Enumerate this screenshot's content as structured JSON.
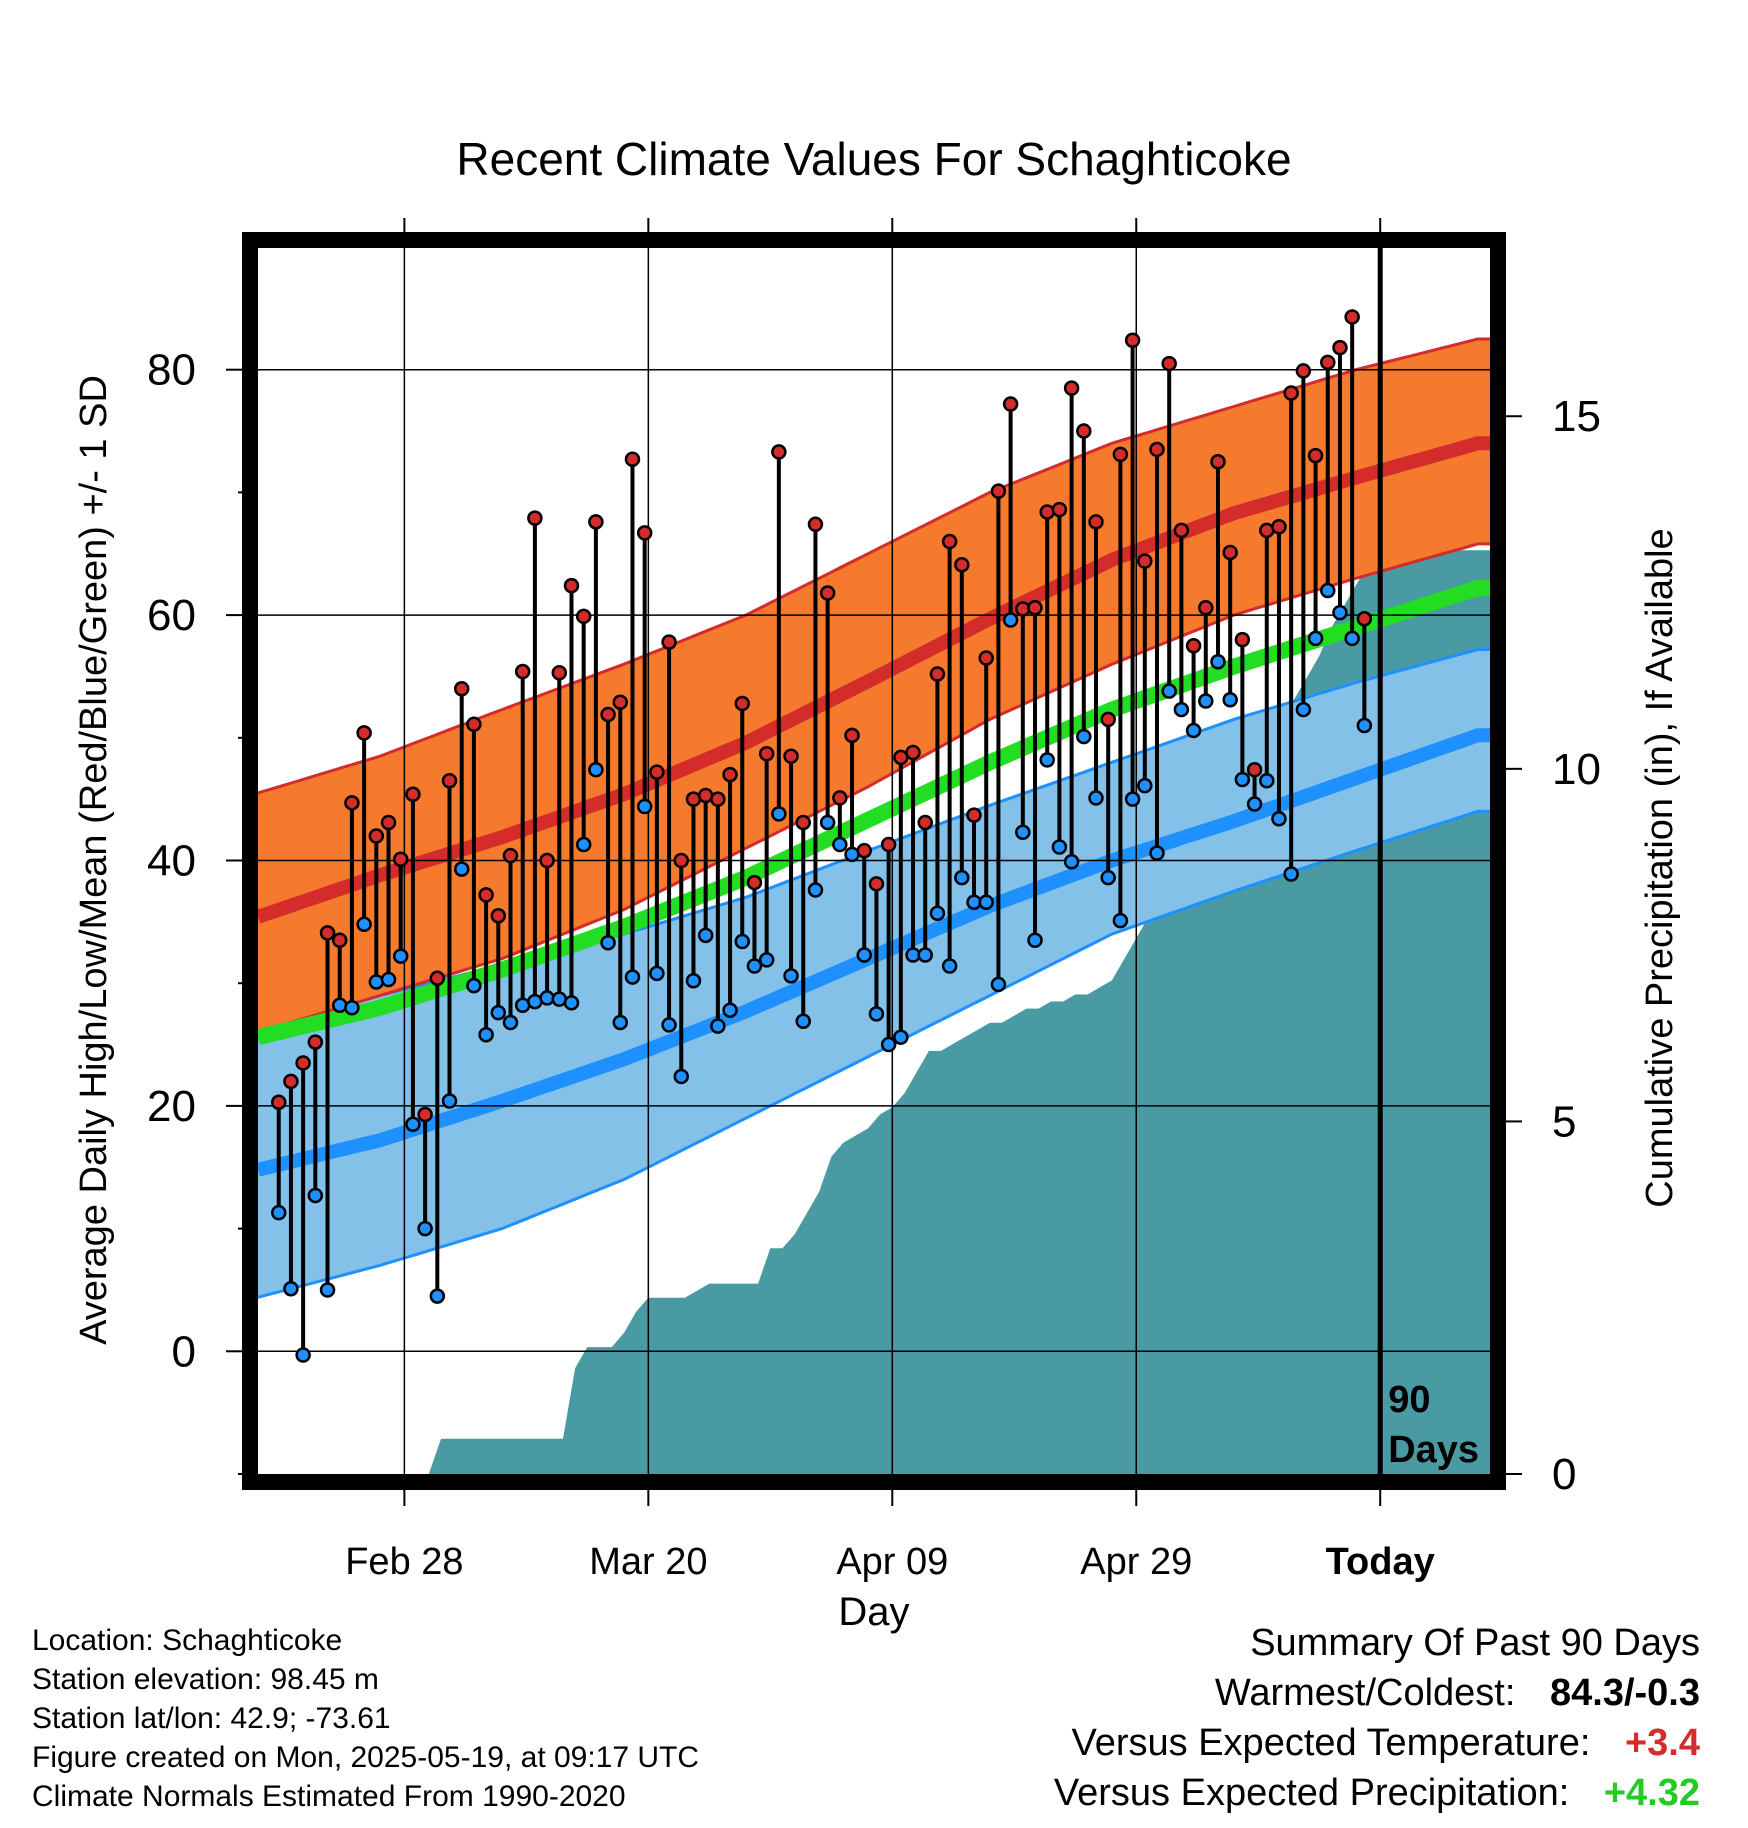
{
  "chart_data": {
    "type": "line",
    "title": "Recent Climate Values For Schaghticoke",
    "xlabel": "Day",
    "ylabel_left": "Average Daily High/Low/Mean (Red/Blue/Green) +/- 1 SD",
    "ylabel_right": "Cumulative Precipitation (in), If Available",
    "x_ticks": [
      {
        "day": 12,
        "label": "Feb 28"
      },
      {
        "day": 32,
        "label": "Mar 20"
      },
      {
        "day": 52,
        "label": "Apr 09"
      },
      {
        "day": 72,
        "label": "Apr 29"
      },
      {
        "day": 92,
        "label": "Today"
      }
    ],
    "xlim": [
      0,
      101
    ],
    "ylim_left": [
      -10,
      90
    ],
    "yticks_left": [
      0,
      20,
      40,
      60,
      80
    ],
    "ylim_right": [
      0,
      17.4
    ],
    "yticks_right": [
      0,
      5,
      10,
      15
    ],
    "today_day": 92,
    "today_annotation": [
      "90",
      "Days"
    ],
    "normals": {
      "x": [
        0,
        10,
        20,
        30,
        40,
        50,
        60,
        70,
        80,
        90,
        100
      ],
      "high_mean": [
        35.4,
        38.8,
        41.9,
        45.4,
        49.6,
        54.6,
        59.7,
        64.5,
        68.3,
        71.2,
        74.0
      ],
      "high_upper": [
        45.5,
        48.5,
        52.3,
        56.0,
        60.0,
        65.0,
        70.0,
        74.0,
        77.0,
        80.0,
        82.5
      ],
      "high_lower": [
        26.0,
        29.0,
        32.0,
        36.0,
        41.0,
        46.0,
        51.5,
        56.0,
        60.0,
        63.0,
        65.8
      ],
      "low_mean": [
        14.8,
        17.2,
        20.4,
        23.8,
        27.7,
        32.0,
        36.3,
        40.0,
        43.2,
        46.7,
        50.2
      ],
      "low_upper": [
        26.5,
        29.0,
        31.5,
        34.0,
        37.0,
        40.8,
        44.5,
        48.0,
        51.5,
        54.5,
        57.2
      ],
      "low_lower": [
        4.4,
        7.0,
        10.0,
        14.0,
        19.0,
        24.0,
        29.0,
        34.0,
        37.5,
        40.8,
        44.0
      ],
      "mean": [
        25.6,
        28.0,
        31.1,
        34.6,
        38.6,
        43.3,
        48.0,
        52.3,
        55.8,
        59.0,
        62.2
      ],
      "colors": {
        "high_band": "#F57A2E",
        "high_line": "#D42B2B",
        "low_band": "#83C1E8",
        "low_line": "#1E90FF",
        "mean_line": "#22DD22"
      }
    },
    "daily_high": [
      20.3,
      22.0,
      23.5,
      25.2,
      34.1,
      33.5,
      44.7,
      50.4,
      42.0,
      43.1,
      40.1,
      45.4,
      19.3,
      30.4,
      46.5,
      54.0,
      51.1,
      37.2,
      35.5,
      40.4,
      55.4,
      67.9,
      40.0,
      55.3,
      62.4,
      59.9,
      67.6,
      51.9,
      52.9,
      72.7,
      66.7,
      47.2,
      57.8,
      40.0,
      45.0,
      45.3,
      45.0,
      47.0,
      52.8,
      38.2,
      48.7,
      73.3,
      48.5,
      43.1,
      67.4,
      61.8,
      45.1,
      50.2,
      40.8,
      38.1,
      41.3,
      48.4,
      48.8,
      43.1,
      55.2,
      66.0,
      64.1,
      43.7,
      56.5,
      70.1,
      77.2,
      60.5,
      60.6,
      68.4,
      68.6,
      78.5,
      75.0,
      67.6,
      51.5,
      73.1,
      82.4,
      64.4,
      73.5,
      80.5,
      66.9,
      57.5,
      60.6,
      72.5,
      65.1,
      58.0,
      47.4,
      66.9,
      67.2,
      78.1,
      79.9,
      73.0,
      80.6,
      81.8,
      84.3,
      59.7
    ],
    "daily_low": [
      11.3,
      5.1,
      -0.3,
      12.7,
      5.0,
      28.2,
      28.0,
      34.8,
      30.1,
      30.3,
      32.2,
      18.5,
      10.0,
      4.5,
      20.4,
      39.3,
      29.8,
      25.8,
      27.6,
      26.8,
      28.2,
      28.5,
      28.8,
      28.7,
      28.4,
      41.3,
      47.4,
      33.3,
      26.8,
      30.5,
      44.4,
      30.8,
      26.6,
      22.4,
      30.2,
      33.9,
      26.5,
      27.8,
      33.4,
      31.4,
      31.9,
      43.8,
      30.6,
      26.9,
      37.6,
      43.1,
      41.3,
      40.5,
      32.3,
      27.5,
      25.0,
      25.6,
      32.3,
      32.3,
      35.7,
      31.4,
      38.6,
      36.6,
      36.6,
      29.9,
      59.6,
      42.3,
      33.5,
      48.2,
      41.1,
      39.9,
      50.1,
      45.1,
      38.6,
      35.1,
      45.0,
      46.1,
      40.6,
      53.8,
      52.3,
      50.6,
      53.0,
      56.2,
      53.1,
      46.6,
      44.6,
      46.5,
      43.4,
      38.9,
      52.3,
      58.1,
      62.0,
      60.2,
      58.1,
      51.0
    ],
    "cumulative_precip": {
      "x": [
        0,
        14,
        15,
        25,
        26,
        27,
        29,
        30,
        31,
        32,
        33,
        34,
        35,
        37,
        38,
        39,
        40,
        41,
        42,
        43,
        44,
        45,
        46,
        47,
        48,
        50,
        51,
        52,
        53,
        54,
        55,
        56,
        57,
        58,
        59,
        60,
        61,
        62,
        63,
        64,
        65,
        66,
        67,
        68,
        69,
        70,
        71,
        72,
        73,
        74,
        75,
        76,
        77,
        78,
        79,
        80,
        81,
        82,
        83,
        84,
        85,
        86,
        87,
        88,
        89,
        90,
        91,
        92,
        101
      ],
      "y": [
        0.0,
        0.0,
        0.5,
        0.5,
        1.5,
        1.8,
        1.8,
        2.0,
        2.3,
        2.5,
        2.5,
        2.5,
        2.5,
        2.7,
        2.7,
        2.7,
        2.7,
        2.7,
        3.2,
        3.2,
        3.4,
        3.7,
        4.0,
        4.5,
        4.7,
        4.9,
        5.1,
        5.2,
        5.4,
        5.7,
        6.0,
        6.0,
        6.1,
        6.2,
        6.3,
        6.4,
        6.4,
        6.5,
        6.6,
        6.6,
        6.7,
        6.7,
        6.8,
        6.8,
        6.9,
        7.0,
        7.3,
        7.6,
        7.9,
        8.1,
        8.3,
        8.5,
        8.8,
        9.1,
        9.4,
        9.6,
        9.8,
        10.1,
        10.4,
        10.7,
        11.0,
        11.3,
        11.6,
        12.0,
        12.3,
        12.6,
        12.9,
        13.1,
        13.1
      ],
      "color": "#4A9AA3"
    }
  },
  "info": {
    "location": "Location: Schaghticoke",
    "elevation": "Station elevation: 98.45 m",
    "latlon": "Station lat/lon: 42.9; -73.61",
    "created": "Figure created on Mon, 2025-05-19, at 09:17 UTC",
    "normals": "Climate Normals Estimated From 1990-2020"
  },
  "summary": {
    "title": "Summary Of Past 90 Days",
    "warmest_label": "Warmest/Coldest:",
    "warmest_value": "84.3/-0.3",
    "temp_label": "Versus Expected Temperature:",
    "temp_value": "+3.4",
    "temp_color": "#D42B2B",
    "precip_label": "Versus Expected Precipitation:",
    "precip_value": "+4.32",
    "precip_color": "#22CC22"
  }
}
